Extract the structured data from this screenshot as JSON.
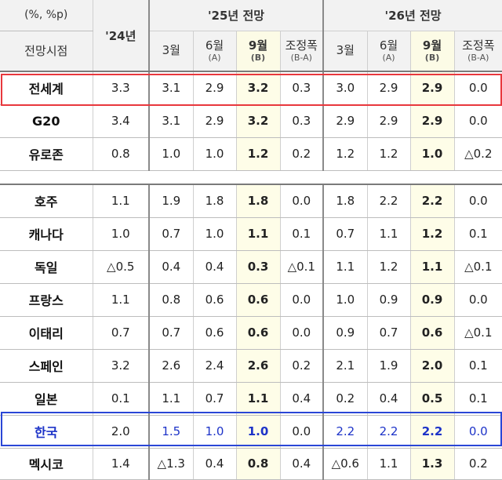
{
  "header": {
    "unit": "(%, %p)",
    "view_label": "전망시점",
    "year24": "'24년",
    "group25": "'25년 전망",
    "group26": "'26년 전망",
    "sub": [
      {
        "label": "3월",
        "note": ""
      },
      {
        "label": "6월",
        "note": "(A)"
      },
      {
        "label": "9월",
        "note": "(B)"
      },
      {
        "label": "조정폭",
        "note": "(B-A)"
      },
      {
        "label": "3월",
        "note": ""
      },
      {
        "label": "6월",
        "note": "(A)"
      },
      {
        "label": "9월",
        "note": "(B)"
      },
      {
        "label": "조정폭",
        "note": "(B-A)"
      }
    ]
  },
  "rows": [
    {
      "name": "전세계",
      "v24": "3.3",
      "y25": [
        "3.1",
        "2.9",
        "3.2",
        "0.3"
      ],
      "y26": [
        "3.0",
        "2.9",
        "2.9",
        "0.0"
      ]
    },
    {
      "name": "G20",
      "v24": "3.4",
      "y25": [
        "3.1",
        "2.9",
        "3.2",
        "0.3"
      ],
      "y26": [
        "2.9",
        "2.9",
        "2.9",
        "0.0"
      ]
    },
    {
      "name": "유로존",
      "v24": "0.8",
      "y25": [
        "1.0",
        "1.0",
        "1.2",
        "0.2"
      ],
      "y26": [
        "1.2",
        "1.2",
        "1.0",
        "△0.2"
      ]
    },
    {
      "name": "호주",
      "v24": "1.1",
      "y25": [
        "1.9",
        "1.8",
        "1.8",
        "0.0"
      ],
      "y26": [
        "1.8",
        "2.2",
        "2.2",
        "0.0"
      ]
    },
    {
      "name": "캐나다",
      "v24": "1.0",
      "y25": [
        "0.7",
        "1.0",
        "1.1",
        "0.1"
      ],
      "y26": [
        "0.7",
        "1.1",
        "1.2",
        "0.1"
      ]
    },
    {
      "name": "독일",
      "v24": "△0.5",
      "y25": [
        "0.4",
        "0.4",
        "0.3",
        "△0.1"
      ],
      "y26": [
        "1.1",
        "1.2",
        "1.1",
        "△0.1"
      ]
    },
    {
      "name": "프랑스",
      "v24": "1.1",
      "y25": [
        "0.8",
        "0.6",
        "0.6",
        "0.0"
      ],
      "y26": [
        "1.0",
        "0.9",
        "0.9",
        "0.0"
      ]
    },
    {
      "name": "이태리",
      "v24": "0.7",
      "y25": [
        "0.7",
        "0.6",
        "0.6",
        "0.0"
      ],
      "y26": [
        "0.9",
        "0.7",
        "0.6",
        "△0.1"
      ]
    },
    {
      "name": "스페인",
      "v24": "3.2",
      "y25": [
        "2.6",
        "2.4",
        "2.6",
        "0.2"
      ],
      "y26": [
        "2.1",
        "1.9",
        "2.0",
        "0.1"
      ]
    },
    {
      "name": "일본",
      "v24": "0.1",
      "y25": [
        "1.1",
        "0.7",
        "1.1",
        "0.4"
      ],
      "y26": [
        "0.2",
        "0.4",
        "0.5",
        "0.1"
      ]
    },
    {
      "name": "한국",
      "v24": "2.0",
      "y25": [
        "1.5",
        "1.0",
        "1.0",
        "0.0"
      ],
      "y26": [
        "2.2",
        "2.2",
        "2.2",
        "0.0"
      ]
    },
    {
      "name": "멕시코",
      "v24": "1.4",
      "y25": [
        "△1.3",
        "0.4",
        "0.8",
        "0.4"
      ],
      "y26": [
        "△0.6",
        "1.1",
        "1.3",
        "0.2"
      ]
    }
  ]
}
